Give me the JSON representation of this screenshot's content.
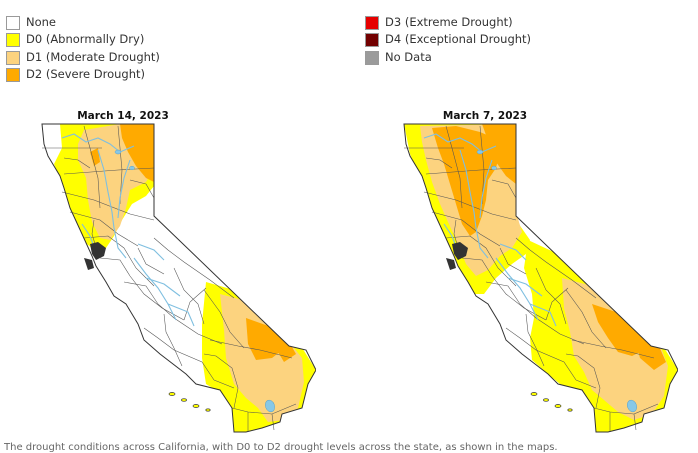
{
  "legend": {
    "left": [
      {
        "label": "None",
        "color": "#ffffff"
      },
      {
        "label": "D0 (Abnormally Dry)",
        "color": "#ffff00"
      },
      {
        "label": "D1 (Moderate Drought)",
        "color": "#fcd37f"
      },
      {
        "label": "D2 (Severe Drought)",
        "color": "#ffaa00"
      }
    ],
    "right": [
      {
        "label": "D3 (Extreme Drought)",
        "color": "#e60000"
      },
      {
        "label": "D4 (Exceptional Drought)",
        "color": "#730000"
      },
      {
        "label": "No Data",
        "color": "#9b9b9b"
      }
    ]
  },
  "maps": [
    {
      "title": "March 14, 2023"
    },
    {
      "title": "March 7, 2023"
    }
  ],
  "colors": {
    "none": "#ffffff",
    "d0": "#ffff00",
    "d1": "#fcd37f",
    "d2": "#ffaa00",
    "water": "#87c8e6",
    "border": "#333333"
  },
  "caption": "The drought conditions across California, with D0 to D2 drought levels across the state, as shown in the maps."
}
